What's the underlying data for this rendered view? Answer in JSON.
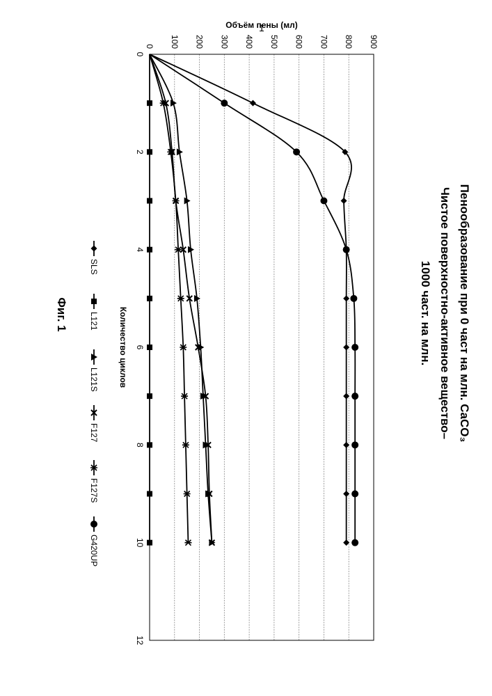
{
  "page_number": "1",
  "chart_data": {
    "type": "line",
    "title_lines": [
      "Пенообразование при 0 част на млн. CaCO₃",
      "Чистое поверхностно-активное вещество–",
      "1000 част. на млн."
    ],
    "xlabel": "Количество циклов",
    "ylabel": "Объём пены (мл)",
    "xlim": [
      0,
      12
    ],
    "ylim": [
      0,
      900
    ],
    "x_ticks": [
      "0",
      "2",
      "4",
      "6",
      "8",
      "10",
      "12"
    ],
    "y_ticks": [
      "0",
      "100",
      "200",
      "300",
      "400",
      "500",
      "600",
      "700",
      "800",
      "900"
    ],
    "grid": true,
    "legend_position": "bottom",
    "series": [
      {
        "name": "SLS",
        "marker": "diamond",
        "x": [
          0,
          1,
          2,
          3,
          4,
          5,
          6,
          7,
          8,
          9,
          10
        ],
        "y": [
          0,
          415,
          785,
          780,
          790,
          790,
          790,
          790,
          790,
          790,
          790
        ]
      },
      {
        "name": "L121",
        "marker": "square",
        "x": [
          0,
          1,
          2,
          3,
          4,
          5,
          6,
          7,
          8,
          9,
          10
        ],
        "y": [
          0,
          0,
          0,
          0,
          0,
          0,
          0,
          0,
          0,
          0,
          0
        ]
      },
      {
        "name": "L121S",
        "marker": "triangle",
        "x": [
          0,
          1,
          2,
          3,
          4,
          5,
          6,
          7,
          8,
          9,
          10
        ],
        "y": [
          0,
          95,
          120,
          150,
          165,
          190,
          205,
          215,
          225,
          235,
          250
        ]
      },
      {
        "name": "F127",
        "marker": "x",
        "x": [
          0,
          1,
          2,
          3,
          4,
          5,
          6,
          7,
          8,
          9,
          10
        ],
        "y": [
          0,
          65,
          90,
          105,
          135,
          160,
          195,
          225,
          235,
          240,
          250
        ]
      },
      {
        "name": "F127S",
        "marker": "star",
        "x": [
          0,
          1,
          2,
          3,
          4,
          5,
          6,
          7,
          8,
          9,
          10
        ],
        "y": [
          0,
          55,
          85,
          105,
          115,
          125,
          135,
          140,
          145,
          150,
          155
        ]
      },
      {
        "name": "G420UP",
        "marker": "circle",
        "x": [
          0,
          1,
          2,
          3,
          4,
          5,
          6,
          7,
          8,
          9,
          10
        ],
        "y": [
          0,
          300,
          590,
          700,
          790,
          820,
          825,
          825,
          825,
          825,
          825
        ]
      }
    ]
  },
  "figure_caption": "Фиг. 1"
}
